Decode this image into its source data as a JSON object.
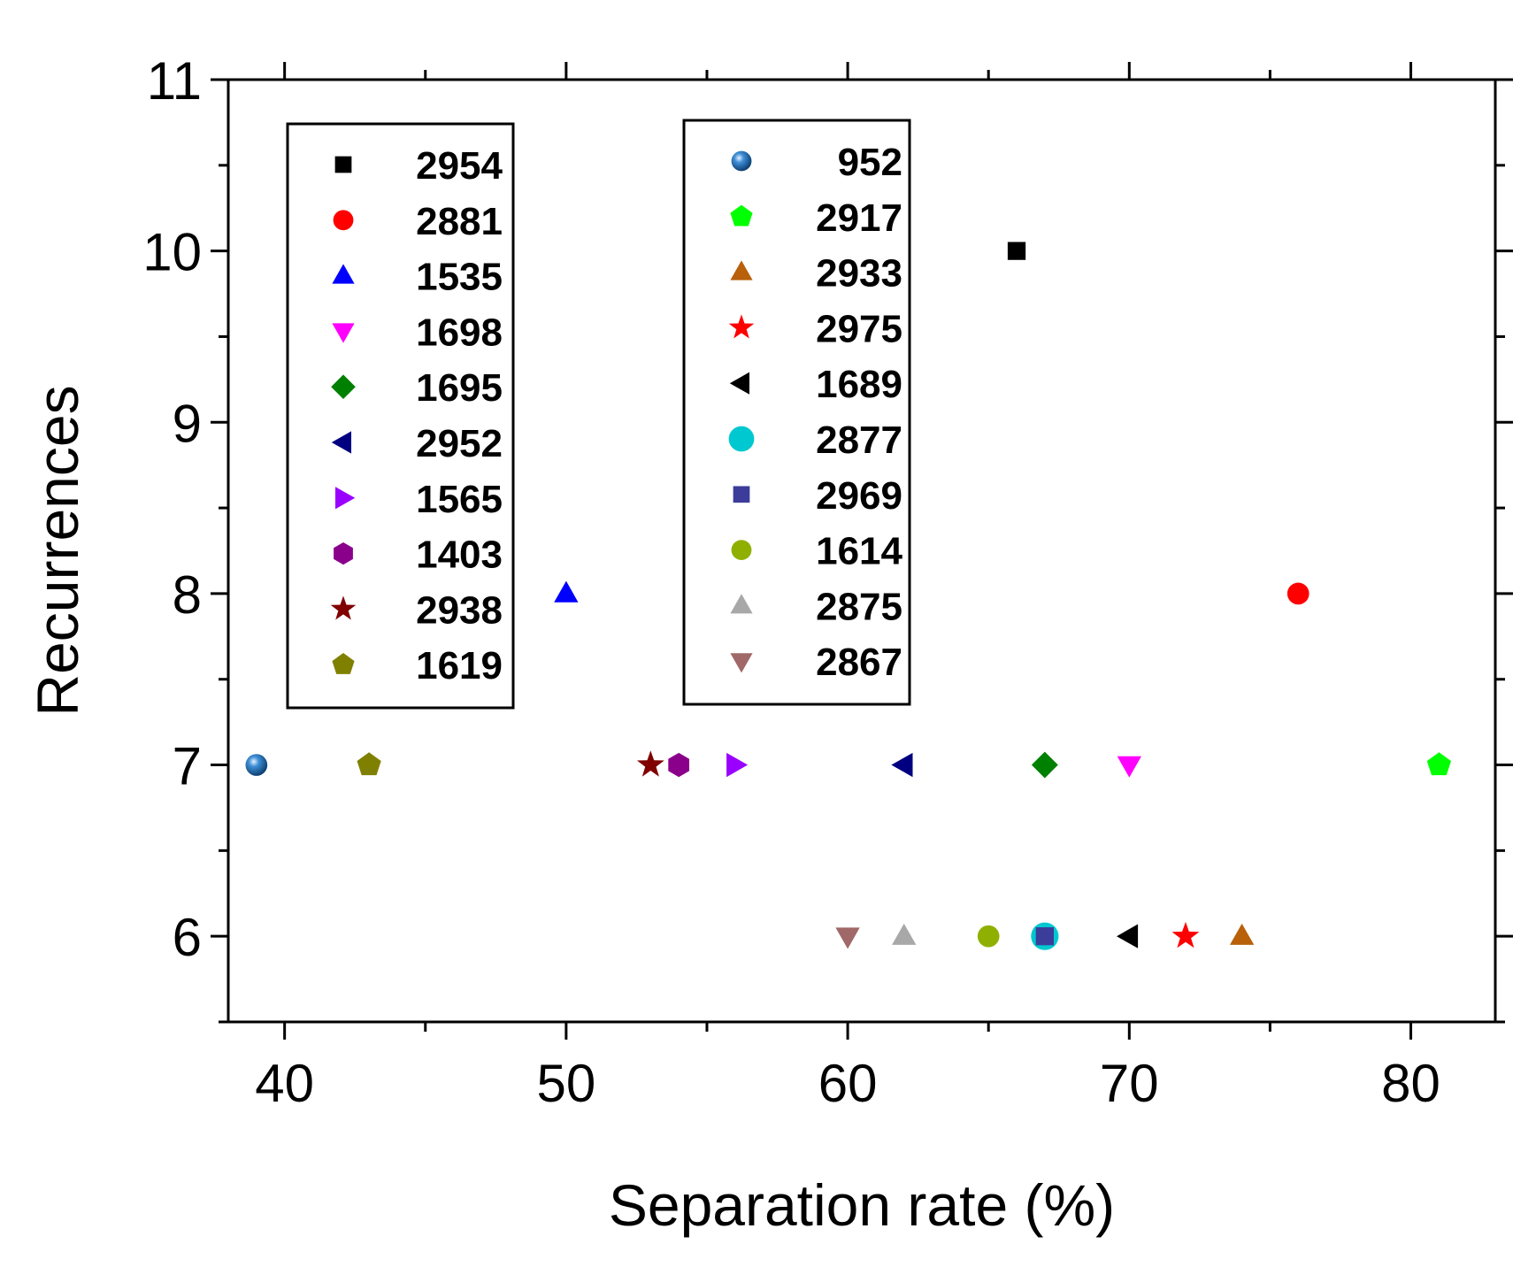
{
  "chart_data": {
    "type": "scatter",
    "title": "",
    "xlabel": "Separation rate (%)",
    "ylabel": "Recurrences",
    "xlim": [
      38,
      83
    ],
    "ylim": [
      5.5,
      11
    ],
    "xticks": [
      40,
      50,
      60,
      70,
      80
    ],
    "yticks": [
      6,
      7,
      8,
      9,
      10,
      11
    ],
    "x_minor_step": 5,
    "y_minor_step": 0.5,
    "grid": false,
    "legend_columns": [
      [
        "2954",
        "2881",
        "1535",
        "1698",
        "1695",
        "2952",
        "1565",
        "1403",
        "2938",
        "1619"
      ],
      [
        "952",
        "2917",
        "2933",
        "2975",
        "1689",
        "2877",
        "2969",
        "1614",
        "2875",
        "2867"
      ]
    ],
    "series": [
      {
        "name": "2954",
        "marker": "square",
        "color": "#000000",
        "x": 66,
        "y": 10
      },
      {
        "name": "2881",
        "marker": "circle",
        "color": "#ff0000",
        "x": 76,
        "y": 8
      },
      {
        "name": "1535",
        "marker": "triangle-up",
        "color": "#0000ff",
        "x": 50,
        "y": 8
      },
      {
        "name": "1698",
        "marker": "triangle-down",
        "color": "#ff00ff",
        "x": 70,
        "y": 7
      },
      {
        "name": "1695",
        "marker": "diamond",
        "color": "#008000",
        "x": 67,
        "y": 7
      },
      {
        "name": "2952",
        "marker": "triangle-left",
        "color": "#000080",
        "x": 62,
        "y": 7
      },
      {
        "name": "1565",
        "marker": "triangle-right",
        "color": "#9900ff",
        "x": 56,
        "y": 7
      },
      {
        "name": "1403",
        "marker": "hexagon",
        "color": "#8b008b",
        "x": 54,
        "y": 7
      },
      {
        "name": "2938",
        "marker": "star",
        "color": "#800000",
        "x": 53,
        "y": 7
      },
      {
        "name": "1619",
        "marker": "pentagon",
        "color": "#808000",
        "x": 43,
        "y": 7
      },
      {
        "name": "952",
        "marker": "sphere",
        "color": "#1f6fb2",
        "x": 39,
        "y": 7
      },
      {
        "name": "2917",
        "marker": "pentagon",
        "color": "#00ff00",
        "x": 81,
        "y": 7
      },
      {
        "name": "2933",
        "marker": "triangle-up",
        "color": "#b8600a",
        "x": 74,
        "y": 6
      },
      {
        "name": "2975",
        "marker": "star",
        "color": "#ff0000",
        "x": 72,
        "y": 6
      },
      {
        "name": "1689",
        "marker": "triangle-left",
        "color": "#000000",
        "x": 70,
        "y": 6
      },
      {
        "name": "2877",
        "marker": "circle-large",
        "color": "#00c8d0",
        "x": 67,
        "y": 6
      },
      {
        "name": "2969",
        "marker": "square",
        "color": "#3c3c9a",
        "x": 67,
        "y": 6
      },
      {
        "name": "1614",
        "marker": "circle",
        "color": "#8fb000",
        "x": 65,
        "y": 6
      },
      {
        "name": "2875",
        "marker": "triangle-up",
        "color": "#a8a8a8",
        "x": 62,
        "y": 6
      },
      {
        "name": "2867",
        "marker": "triangle-down",
        "color": "#a06868",
        "x": 60,
        "y": 6
      }
    ]
  }
}
